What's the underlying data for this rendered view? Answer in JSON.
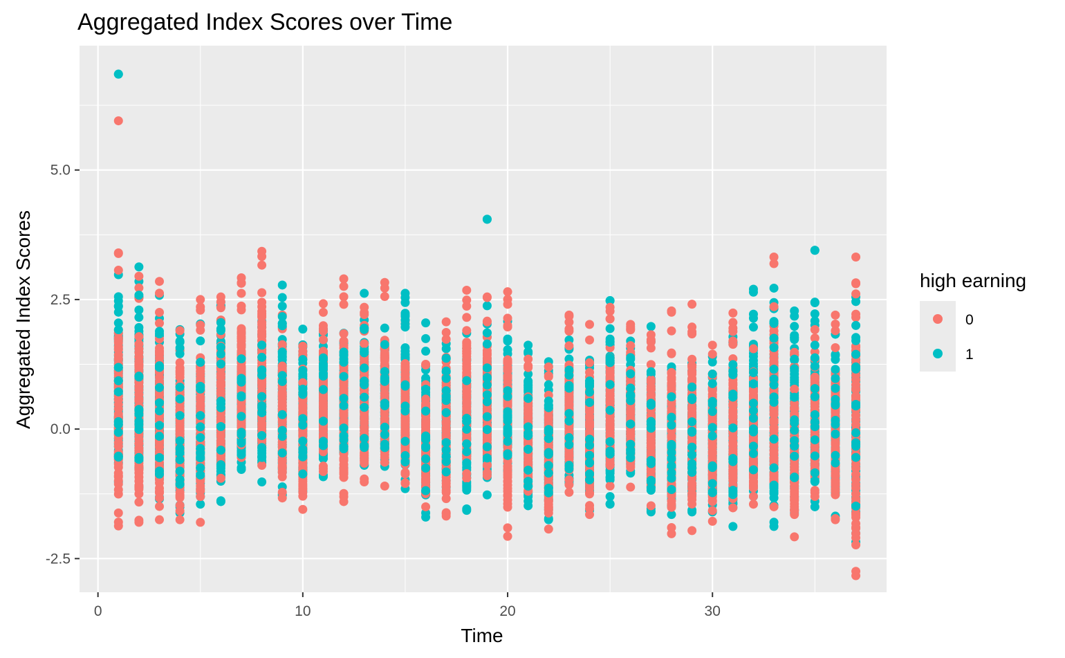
{
  "chart_data": {
    "type": "scatter",
    "title": "Aggregated Index Scores over Time",
    "xlabel": "Time",
    "ylabel": "Aggregated Index Scores",
    "xlim": [
      -0.9,
      38.5
    ],
    "ylim": [
      -3.15,
      7.4
    ],
    "x_ticks": [
      0,
      10,
      20,
      30
    ],
    "x_tick_labels": [
      "0",
      "10",
      "20",
      "30"
    ],
    "x_minor_ticks": [
      5,
      15,
      25,
      35
    ],
    "y_ticks": [
      -2.5,
      0.0,
      2.5,
      5.0
    ],
    "y_tick_labels": [
      "-2.5",
      "0.0",
      "2.5",
      "5.0"
    ],
    "y_minor_ticks": [
      -1.25,
      1.25,
      3.75,
      6.25
    ],
    "grid": true,
    "legend": {
      "title": "high earning",
      "position": "right"
    },
    "series": [
      {
        "name": "0",
        "color": "#F8766D",
        "ranges": [
          {
            "x": 1,
            "min": -1.87,
            "max": 3.4
          },
          {
            "x": 2,
            "min": -1.8,
            "max": 2.95
          },
          {
            "x": 3,
            "min": -1.75,
            "max": 2.85
          },
          {
            "x": 4,
            "min": -1.75,
            "max": 1.9
          },
          {
            "x": 5,
            "min": -1.8,
            "max": 2.5
          },
          {
            "x": 6,
            "min": -0.95,
            "max": 2.55
          },
          {
            "x": 7,
            "min": -0.55,
            "max": 2.92
          },
          {
            "x": 8,
            "min": -0.7,
            "max": 3.43
          },
          {
            "x": 9,
            "min": -1.33,
            "max": 2.2
          },
          {
            "x": 10,
            "min": -1.55,
            "max": 1.6
          },
          {
            "x": 11,
            "min": -0.82,
            "max": 2.42
          },
          {
            "x": 12,
            "min": -1.4,
            "max": 2.9
          },
          {
            "x": 13,
            "min": -1.02,
            "max": 2.35
          },
          {
            "x": 14,
            "min": -1.1,
            "max": 2.83
          },
          {
            "x": 15,
            "min": -1.05,
            "max": 2.1
          },
          {
            "x": 16,
            "min": -1.5,
            "max": 1.25
          },
          {
            "x": 17,
            "min": -1.68,
            "max": 2.07
          },
          {
            "x": 18,
            "min": -0.95,
            "max": 2.68
          },
          {
            "x": 19,
            "min": -0.9,
            "max": 2.55
          },
          {
            "x": 20,
            "min": -2.07,
            "max": 2.65
          },
          {
            "x": 21,
            "min": -1.2,
            "max": 1.35
          },
          {
            "x": 22,
            "min": -1.93,
            "max": 1.2
          },
          {
            "x": 23,
            "min": -1.22,
            "max": 2.2
          },
          {
            "x": 24,
            "min": -1.65,
            "max": 2.02
          },
          {
            "x": 25,
            "min": -1.1,
            "max": 2.35
          },
          {
            "x": 26,
            "min": -1.12,
            "max": 2.02
          },
          {
            "x": 27,
            "min": -1.48,
            "max": 1.82
          },
          {
            "x": 28,
            "min": -2.02,
            "max": 2.28
          },
          {
            "x": 29,
            "min": -1.96,
            "max": 2.41
          },
          {
            "x": 30,
            "min": -1.78,
            "max": 1.62
          },
          {
            "x": 31,
            "min": -1.52,
            "max": 2.24
          },
          {
            "x": 32,
            "min": -1.45,
            "max": 1.55
          },
          {
            "x": 33,
            "min": -1.5,
            "max": 3.32
          },
          {
            "x": 34,
            "min": -2.08,
            "max": 1.48
          },
          {
            "x": 35,
            "min": -1.3,
            "max": 1.92
          },
          {
            "x": 36,
            "min": -1.75,
            "max": 2.2
          },
          {
            "x": 37,
            "min": -2.83,
            "max": 3.32
          }
        ],
        "outliers": [
          {
            "x": 1,
            "y": 5.95
          }
        ]
      },
      {
        "name": "1",
        "color": "#00BFC4",
        "ranges": [
          {
            "x": 1,
            "min": -1.02,
            "max": 2.98
          },
          {
            "x": 2,
            "min": -1.12,
            "max": 3.13
          },
          {
            "x": 3,
            "min": -1.35,
            "max": 2.58
          },
          {
            "x": 4,
            "min": -1.62,
            "max": 1.92
          },
          {
            "x": 5,
            "min": -1.45,
            "max": 2.03
          },
          {
            "x": 6,
            "min": -1.4,
            "max": 2.45
          },
          {
            "x": 7,
            "min": -0.78,
            "max": 1.85
          },
          {
            "x": 8,
            "min": -1.02,
            "max": 2.08
          },
          {
            "x": 9,
            "min": -1.28,
            "max": 2.78
          },
          {
            "x": 10,
            "min": -1.2,
            "max": 1.93
          },
          {
            "x": 11,
            "min": -0.92,
            "max": 1.93
          },
          {
            "x": 12,
            "min": -0.75,
            "max": 1.85
          },
          {
            "x": 13,
            "min": -0.7,
            "max": 2.62
          },
          {
            "x": 14,
            "min": -0.72,
            "max": 1.95
          },
          {
            "x": 15,
            "min": -1.15,
            "max": 2.62
          },
          {
            "x": 16,
            "min": -1.7,
            "max": 2.05
          },
          {
            "x": 17,
            "min": -1.12,
            "max": 1.65
          },
          {
            "x": 18,
            "min": -1.57,
            "max": 1.85
          },
          {
            "x": 19,
            "min": -1.27,
            "max": 2.38
          },
          {
            "x": 20,
            "min": -0.8,
            "max": 2.08
          },
          {
            "x": 21,
            "min": -1.48,
            "max": 1.62
          },
          {
            "x": 22,
            "min": -1.75,
            "max": 1.3
          },
          {
            "x": 23,
            "min": -1.05,
            "max": 1.72
          },
          {
            "x": 24,
            "min": -1.57,
            "max": 1.33
          },
          {
            "x": 25,
            "min": -1.45,
            "max": 2.48
          },
          {
            "x": 26,
            "min": -0.85,
            "max": 1.7
          },
          {
            "x": 27,
            "min": -1.6,
            "max": 1.98
          },
          {
            "x": 28,
            "min": -1.65,
            "max": 1.2
          },
          {
            "x": 29,
            "min": -1.6,
            "max": 1.27
          },
          {
            "x": 30,
            "min": -1.6,
            "max": 1.4
          },
          {
            "x": 31,
            "min": -1.88,
            "max": 1.78
          },
          {
            "x": 32,
            "min": -1.3,
            "max": 2.7
          },
          {
            "x": 33,
            "min": -1.88,
            "max": 2.72
          },
          {
            "x": 34,
            "min": -1.62,
            "max": 2.28
          },
          {
            "x": 35,
            "min": -1.5,
            "max": 2.45
          },
          {
            "x": 36,
            "min": -1.68,
            "max": 1.83
          },
          {
            "x": 37,
            "min": -2.18,
            "max": 2.55
          }
        ],
        "outliers": [
          {
            "x": 1,
            "y": 6.85
          },
          {
            "x": 19,
            "y": 4.05
          },
          {
            "x": 35,
            "y": 3.45
          }
        ]
      }
    ]
  }
}
